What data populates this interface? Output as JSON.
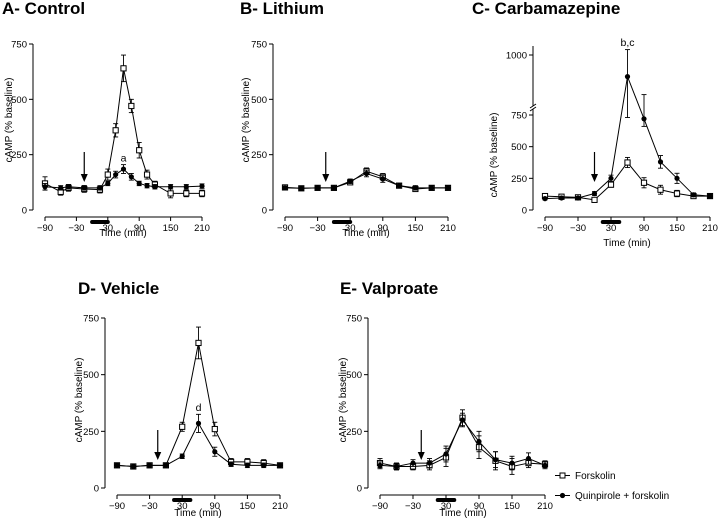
{
  "chart_data": [
    {
      "panel": "A",
      "type": "line",
      "title": "A- Control",
      "xlabel": "Time (min)",
      "ylabel": "cAMP (% baseline)",
      "xlim": [
        -90,
        210
      ],
      "ylim": [
        0,
        750
      ],
      "xticks": [
        -90,
        -30,
        30,
        90,
        150,
        210
      ],
      "yticks": [
        0,
        250,
        500,
        750
      ],
      "x": [
        -90,
        -60,
        -45,
        -15,
        15,
        30,
        45,
        60,
        75,
        90,
        105,
        120,
        150,
        180,
        210
      ],
      "series": [
        {
          "name": "Forskolin",
          "marker": "open-square",
          "values": [
            120,
            82,
            100,
            95,
            92,
            160,
            360,
            640,
            470,
            270,
            160,
            115,
            75,
            75,
            75
          ],
          "errors": [
            30,
            15,
            15,
            15,
            15,
            25,
            30,
            60,
            30,
            35,
            20,
            15,
            20,
            15,
            15
          ]
        },
        {
          "name": "Quinpirole + forskolin",
          "marker": "filled-circle",
          "values": [
            105,
            100,
            105,
            100,
            100,
            120,
            160,
            185,
            150,
            120,
            110,
            105,
            105,
            105,
            108
          ],
          "errors": [
            15,
            10,
            10,
            10,
            10,
            10,
            15,
            20,
            15,
            10,
            10,
            10,
            10,
            10,
            10
          ]
        }
      ],
      "annotations": [
        {
          "text": "a",
          "x": 60,
          "y": 220
        }
      ],
      "arrow_x": -15,
      "bar": {
        "from": 0,
        "to": 30
      }
    },
    {
      "panel": "B",
      "type": "line",
      "title": "B- Lithium",
      "xlabel": "Time (min)",
      "ylabel": "cAMP (% baseline)",
      "xlim": [
        -90,
        210
      ],
      "ylim": [
        0,
        750
      ],
      "xticks": [
        -90,
        -30,
        30,
        90,
        150,
        210
      ],
      "yticks": [
        0,
        250,
        500,
        750
      ],
      "x": [
        -90,
        -60,
        -30,
        0,
        30,
        60,
        90,
        120,
        150,
        180,
        210
      ],
      "series": [
        {
          "name": "Forskolin",
          "marker": "open-square",
          "values": [
            102,
            98,
            100,
            100,
            125,
            175,
            150,
            110,
            95,
            100,
            100
          ],
          "errors": [
            10,
            8,
            8,
            8,
            10,
            15,
            15,
            10,
            10,
            10,
            10
          ]
        },
        {
          "name": "Quinpirole + forskolin",
          "marker": "filled-circle",
          "values": [
            100,
            98,
            100,
            100,
            130,
            165,
            140,
            110,
            100,
            100,
            100
          ],
          "errors": [
            8,
            8,
            8,
            8,
            10,
            15,
            15,
            10,
            10,
            10,
            10
          ]
        }
      ],
      "arrow_x": -15,
      "bar": {
        "from": 0,
        "to": 30
      }
    },
    {
      "panel": "C",
      "type": "line",
      "title": "C- Carbamazepine",
      "xlabel": "Time (min)",
      "ylabel": "cAMP (% baseline)",
      "xlim": [
        -90,
        210
      ],
      "y_axis_break": true,
      "ylim_lower": [
        0,
        750
      ],
      "ylim_upper": [
        750,
        1050
      ],
      "xticks": [
        -90,
        -30,
        30,
        90,
        150,
        210
      ],
      "yticks_lower": [
        0,
        250,
        500
      ],
      "yticks_upper": [
        750,
        1000
      ],
      "x": [
        -90,
        -60,
        -30,
        0,
        30,
        60,
        90,
        120,
        150,
        180,
        210
      ],
      "series": [
        {
          "name": "Forskolin",
          "marker": "open-square",
          "values": [
            110,
            105,
            100,
            80,
            200,
            375,
            215,
            160,
            130,
            110,
            110
          ],
          "errors": [
            15,
            15,
            15,
            15,
            20,
            40,
            40,
            35,
            25,
            15,
            15
          ]
        },
        {
          "name": "Quinpirole + forskolin",
          "marker": "filled-circle",
          "values": [
            90,
            95,
            95,
            130,
            250,
            880,
            720,
            380,
            250,
            120,
            110
          ],
          "errors": [
            10,
            10,
            10,
            15,
            25,
            150,
            60,
            50,
            40,
            15,
            15
          ]
        }
      ],
      "annotations": [
        {
          "text": "b,c",
          "x": 60,
          "y": 1050
        }
      ],
      "arrow_x": 0,
      "bar": {
        "from": 15,
        "to": 45
      }
    },
    {
      "panel": "D",
      "type": "line",
      "title": "D- Vehicle",
      "xlabel": "Time (min)",
      "ylabel": "cAMP (% baseline)",
      "xlim": [
        -90,
        210
      ],
      "ylim": [
        0,
        750
      ],
      "xticks": [
        -90,
        -30,
        30,
        90,
        150,
        210
      ],
      "yticks": [
        0,
        250,
        500,
        750
      ],
      "x": [
        -90,
        -60,
        -30,
        0,
        30,
        60,
        90,
        120,
        150,
        180,
        210
      ],
      "series": [
        {
          "name": "Forskolin",
          "marker": "open-square",
          "values": [
            100,
            95,
            100,
            100,
            270,
            640,
            260,
            115,
            115,
            110,
            100
          ],
          "errors": [
            10,
            10,
            10,
            10,
            20,
            70,
            30,
            15,
            15,
            15,
            10
          ]
        },
        {
          "name": "Quinpirole + forskolin",
          "marker": "filled-circle",
          "values": [
            100,
            95,
            100,
            100,
            140,
            285,
            160,
            105,
            100,
            100,
            100
          ],
          "errors": [
            10,
            10,
            10,
            10,
            10,
            40,
            20,
            10,
            10,
            10,
            10
          ]
        }
      ],
      "annotations": [
        {
          "text": "d",
          "x": 60,
          "y": 340
        }
      ],
      "arrow_x": -15,
      "bar": {
        "from": 15,
        "to": 45
      }
    },
    {
      "panel": "E",
      "type": "line",
      "title": "E- Valproate",
      "xlabel": "Time (min)",
      "ylabel": "cAMP (% baseline)",
      "xlim": [
        -90,
        210
      ],
      "ylim": [
        0,
        750
      ],
      "xticks": [
        -90,
        -30,
        30,
        90,
        150,
        210
      ],
      "yticks": [
        0,
        250,
        500,
        750
      ],
      "x": [
        -90,
        -60,
        -30,
        0,
        30,
        60,
        90,
        120,
        150,
        180,
        210
      ],
      "series": [
        {
          "name": "Forskolin",
          "marker": "open-square",
          "values": [
            110,
            95,
            95,
            100,
            135,
            310,
            180,
            120,
            95,
            110,
            105
          ],
          "errors": [
            20,
            15,
            15,
            20,
            40,
            35,
            50,
            40,
            35,
            20,
            15
          ]
        },
        {
          "name": "Quinpirole + forskolin",
          "marker": "filled-circle",
          "values": [
            100,
            95,
            110,
            110,
            150,
            300,
            205,
            125,
            110,
            130,
            100
          ],
          "errors": [
            15,
            15,
            15,
            20,
            35,
            30,
            45,
            35,
            30,
            25,
            15
          ]
        }
      ],
      "arrow_x": -15,
      "bar": {
        "from": 15,
        "to": 45
      }
    }
  ],
  "legend": {
    "items": [
      "Forskolin",
      "Quinpirole + forskolin"
    ],
    "placement": "bottom-right"
  }
}
